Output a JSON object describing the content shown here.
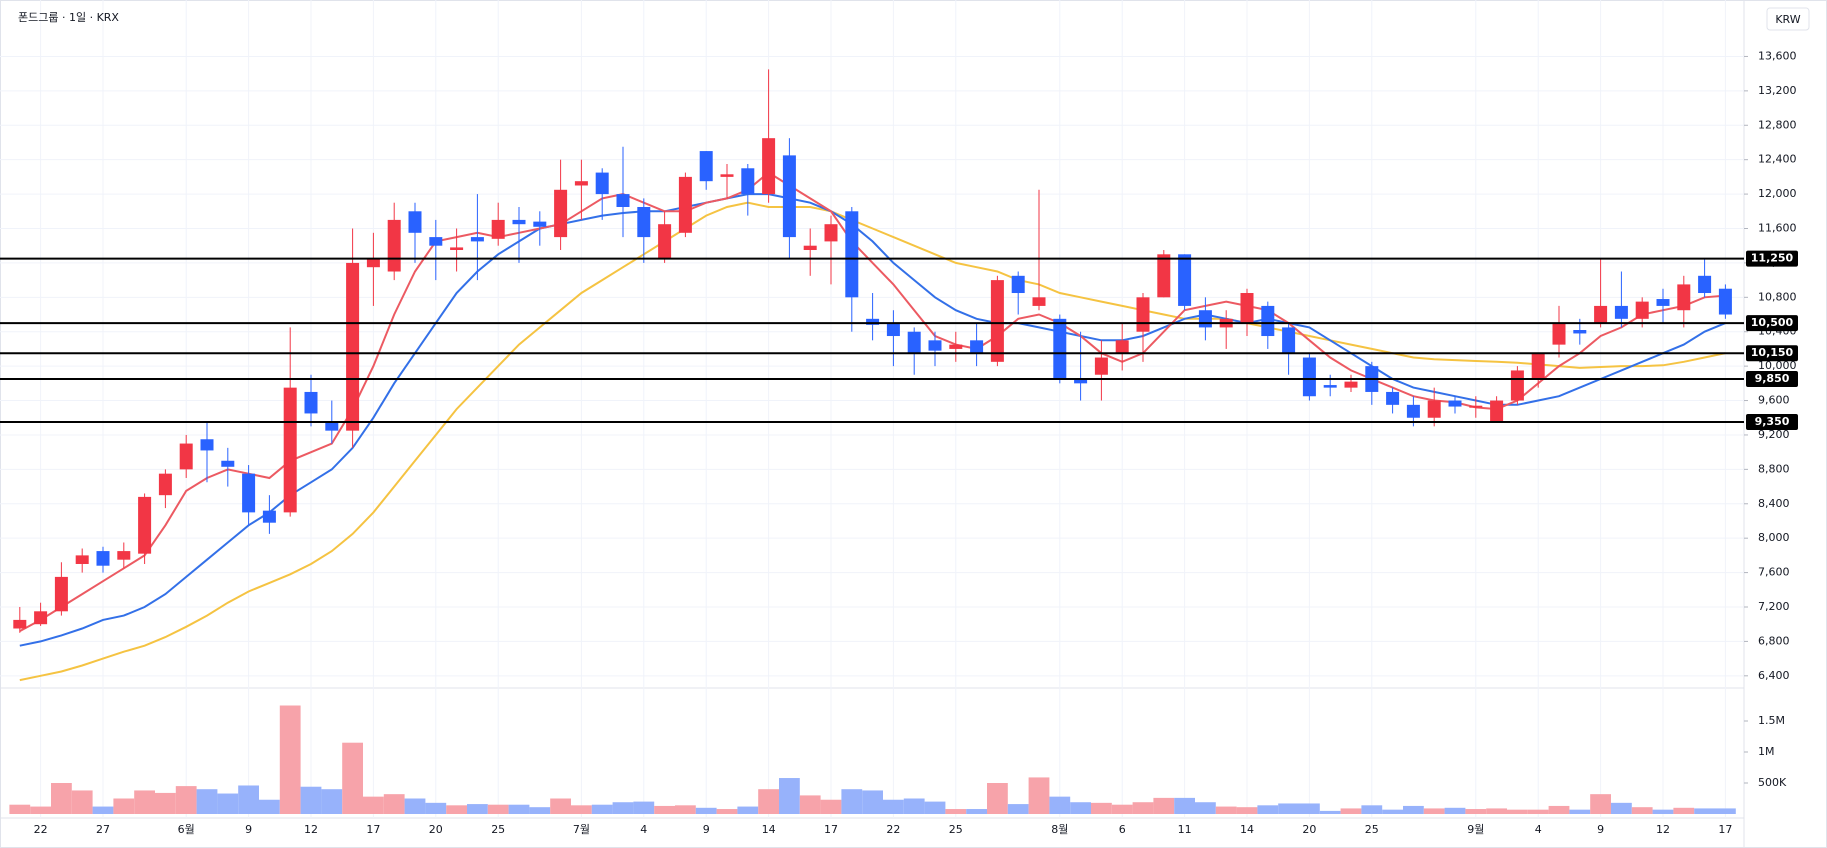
{
  "chart_data": {
    "type": "candlestick",
    "title": "폰드그룹 · 1일 · KRX",
    "currency": "KRW",
    "categories": [
      null,
      "22",
      null,
      null,
      "27",
      null,
      null,
      null,
      "6월",
      null,
      null,
      "9",
      null,
      null,
      "12",
      null,
      null,
      "17",
      null,
      null,
      "20",
      null,
      null,
      "25",
      null,
      null,
      null,
      "7월",
      null,
      null,
      "4",
      null,
      null,
      "9",
      null,
      null,
      "14",
      null,
      null,
      "17",
      null,
      null,
      "22",
      null,
      null,
      "25",
      null,
      null,
      null,
      null,
      "8월",
      null,
      null,
      "6",
      null,
      null,
      "11",
      null,
      null,
      "14",
      null,
      null,
      "20",
      null,
      null,
      "25",
      null,
      null,
      null,
      null,
      "9월",
      null,
      null,
      "4",
      null,
      null,
      "9",
      null,
      null,
      "12",
      null,
      null,
      "17"
    ],
    "open": [
      6950,
      7000,
      7150,
      7700,
      7850,
      7750,
      7820,
      8500,
      8800,
      9150,
      8900,
      8750,
      8320,
      8300,
      9700,
      9350,
      9250,
      11150,
      11100,
      11800,
      11500,
      11350,
      11500,
      11480,
      11700,
      11680,
      11500,
      12100,
      12250,
      12000,
      11850,
      11250,
      11550,
      12500,
      12200,
      12300,
      12000,
      12450,
      11350,
      11450,
      11800,
      10550,
      10500,
      10400,
      10300,
      10200,
      10300,
      10050,
      11050,
      10700,
      10550,
      9850,
      9900,
      10150,
      10400,
      10800,
      11300,
      10650,
      10450,
      10500,
      10700,
      10450,
      10100,
      9780,
      9750,
      10000,
      9700,
      9550,
      9400,
      9600,
      9520,
      9350,
      9600,
      9850,
      10250,
      10420,
      10500,
      10700,
      10550,
      10780,
      10650,
      11050,
      10900
    ],
    "high": [
      7200,
      7250,
      7720,
      7880,
      7900,
      7950,
      8520,
      8800,
      9200,
      9350,
      9050,
      8850,
      8500,
      10450,
      9900,
      9600,
      11600,
      11550,
      11900,
      11900,
      11700,
      11600,
      12000,
      11900,
      11850,
      11800,
      12400,
      12400,
      12300,
      12550,
      11950,
      11800,
      12250,
      12500,
      12350,
      12350,
      13450,
      12650,
      11600,
      11750,
      11850,
      10850,
      10650,
      10450,
      10400,
      10400,
      10500,
      11050,
      11100,
      12050,
      10600,
      10400,
      10300,
      10500,
      10850,
      11350,
      11300,
      10800,
      10650,
      10900,
      10750,
      10500,
      10150,
      9900,
      9900,
      10050,
      9750,
      9650,
      9750,
      9650,
      9650,
      9650,
      10000,
      10150,
      10700,
      10550,
      11250,
      11100,
      10800,
      10900,
      11050,
      11250,
      10950
    ],
    "low": [
      6900,
      6980,
      7100,
      7600,
      7600,
      7650,
      7700,
      8350,
      8700,
      8650,
      8600,
      8150,
      8050,
      8250,
      9300,
      9100,
      9050,
      10700,
      11000,
      11200,
      11000,
      11100,
      11000,
      11400,
      11200,
      11400,
      11350,
      11700,
      11700,
      11500,
      11200,
      11200,
      11500,
      12050,
      11950,
      11750,
      11900,
      11250,
      11050,
      10950,
      10400,
      10300,
      10000,
      9900,
      10000,
      10050,
      10000,
      10000,
      10600,
      10650,
      9800,
      9600,
      9600,
      9950,
      10050,
      10800,
      10650,
      10300,
      10200,
      10350,
      10200,
      9900,
      9600,
      9650,
      9700,
      9550,
      9450,
      9300,
      9300,
      9450,
      9400,
      9350,
      9550,
      9750,
      10100,
      10250,
      10450,
      10450,
      10450,
      10500,
      10450,
      10800,
      10550
    ],
    "close": [
      7050,
      7150,
      7550,
      7800,
      7680,
      7850,
      8480,
      8750,
      9100,
      9020,
      8830,
      8300,
      8180,
      9750,
      9450,
      9250,
      11200,
      11250,
      11700,
      11550,
      11400,
      11380,
      11450,
      11700,
      11650,
      11620,
      12050,
      12150,
      12000,
      11850,
      11500,
      11650,
      12200,
      12150,
      12230,
      12000,
      12650,
      11500,
      11400,
      11650,
      10800,
      10480,
      10350,
      10150,
      10180,
      10250,
      10150,
      11000,
      10850,
      10800,
      9850,
      9800,
      10100,
      10300,
      10800,
      11300,
      10700,
      10450,
      10550,
      10850,
      10350,
      10150,
      9650,
      9750,
      9820,
      9700,
      9550,
      9400,
      9600,
      9530,
      9540,
      9600,
      9950,
      10150,
      10500,
      10380,
      10700,
      10550,
      10750,
      10700,
      10950,
      10850,
      10600
    ],
    "volume": [
      150000,
      120000,
      500000,
      380000,
      120000,
      250000,
      380000,
      340000,
      450000,
      400000,
      330000,
      460000,
      230000,
      1750000,
      440000,
      400000,
      1150000,
      280000,
      320000,
      250000,
      180000,
      140000,
      160000,
      150000,
      150000,
      110000,
      250000,
      140000,
      150000,
      190000,
      200000,
      130000,
      140000,
      100000,
      80000,
      120000,
      400000,
      580000,
      300000,
      230000,
      400000,
      380000,
      230000,
      250000,
      200000,
      80000,
      80000,
      500000,
      160000,
      590000,
      280000,
      190000,
      180000,
      150000,
      190000,
      260000,
      260000,
      190000,
      120000,
      110000,
      140000,
      170000,
      170000,
      50000,
      90000,
      140000,
      70000,
      130000,
      90000,
      100000,
      80000,
      90000,
      70000,
      70000,
      130000,
      70000,
      320000,
      180000,
      110000,
      70000,
      100000,
      90000,
      90000
    ],
    "up_color": "#f23645",
    "down_color": "#2962ff",
    "up_volume_color": "#f7a3aa",
    "down_volume_color": "#97b2fb",
    "moving_averages": [
      {
        "color": "#f5c342",
        "values": [
          6350,
          6400,
          6450,
          6520,
          6600,
          6680,
          6750,
          6850,
          6970,
          7100,
          7250,
          7380,
          7480,
          7580,
          7700,
          7850,
          8050,
          8300,
          8600,
          8900,
          9200,
          9500,
          9750,
          10000,
          10250,
          10450,
          10650,
          10850,
          11000,
          11150,
          11300,
          11450,
          11600,
          11750,
          11850,
          11900,
          11850,
          11850,
          11850,
          11800,
          11700,
          11600,
          11500,
          11400,
          11300,
          11200,
          11150,
          11100,
          11000,
          10950,
          10850,
          10800,
          10750,
          10700,
          10650,
          10600,
          10550,
          10550,
          10550,
          10500,
          10450,
          10400,
          10350,
          10300,
          10250,
          10200,
          10150,
          10100,
          10080,
          10070,
          10060,
          10050,
          10040,
          10020,
          10000,
          9980,
          9990,
          10000,
          10000,
          10010,
          10050,
          10100,
          10150
        ]
      },
      {
        "color": "#3370e8",
        "values": [
          6750,
          6800,
          6870,
          6950,
          7050,
          7100,
          7200,
          7350,
          7550,
          7750,
          7950,
          8150,
          8300,
          8500,
          8650,
          8800,
          9050,
          9400,
          9800,
          10150,
          10500,
          10850,
          11100,
          11300,
          11450,
          11600,
          11650,
          11700,
          11750,
          11780,
          11800,
          11800,
          11850,
          11900,
          11950,
          12000,
          12000,
          11950,
          11900,
          11800,
          11650,
          11450,
          11200,
          11000,
          10800,
          10650,
          10550,
          10500,
          10500,
          10450,
          10400,
          10350,
          10300,
          10300,
          10350,
          10450,
          10550,
          10600,
          10550,
          10500,
          10550,
          10500,
          10450,
          10300,
          10150,
          10000,
          9850,
          9750,
          9700,
          9650,
          9600,
          9550,
          9550,
          9600,
          9650,
          9750,
          9850,
          9950,
          10050,
          10150,
          10250,
          10400,
          10500
        ]
      },
      {
        "color": "#ec5a62",
        "values": [
          6920,
          7050,
          7200,
          7350,
          7500,
          7650,
          7800,
          8150,
          8550,
          8700,
          8800,
          8750,
          8700,
          8900,
          9000,
          9100,
          9500,
          10000,
          10600,
          11100,
          11450,
          11500,
          11550,
          11500,
          11550,
          11600,
          11650,
          11800,
          11950,
          12000,
          11900,
          11800,
          11800,
          11900,
          11950,
          12050,
          12250,
          12100,
          11950,
          11800,
          11450,
          11200,
          10950,
          10650,
          10350,
          10250,
          10200,
          10350,
          10550,
          10600,
          10500,
          10350,
          10150,
          10050,
          10150,
          10400,
          10650,
          10700,
          10750,
          10700,
          10650,
          10500,
          10300,
          10100,
          9950,
          9850,
          9750,
          9650,
          9600,
          9580,
          9520,
          9500,
          9600,
          9800,
          10000,
          10150,
          10350,
          10450,
          10600,
          10650,
          10700,
          10800,
          10820
        ]
      }
    ],
    "levels": [
      {
        "value": 11250,
        "label": "11,250"
      },
      {
        "value": 10500,
        "label": "10,500"
      },
      {
        "value": 10150,
        "label": "10,150"
      },
      {
        "value": 9850,
        "label": "9,850"
      },
      {
        "value": 9350,
        "label": "9,350"
      }
    ],
    "level_color": "#000000",
    "ylim": [
      6270,
      14140
    ],
    "yticks": [
      {
        "value": 6400,
        "label": "6,400"
      },
      {
        "value": 6800,
        "label": "6,800"
      },
      {
        "value": 7200,
        "label": "7,200"
      },
      {
        "value": 7600,
        "label": "7,600"
      },
      {
        "value": 8000,
        "label": "8,000"
      },
      {
        "value": 8400,
        "label": "8,400"
      },
      {
        "value": 8800,
        "label": "8,800"
      },
      {
        "value": 9200,
        "label": "9,200"
      },
      {
        "value": 9600,
        "label": "9,600"
      },
      {
        "value": 10000,
        "label": "10,000"
      },
      {
        "value": 10400,
        "label": "10,400"
      },
      {
        "value": 10800,
        "label": "10,800"
      },
      {
        "value": 11200,
        "label": "11,200"
      },
      {
        "value": 11600,
        "label": "11,600"
      },
      {
        "value": 12000,
        "label": "12,000"
      },
      {
        "value": 12400,
        "label": "12,400"
      },
      {
        "value": 12800,
        "label": "12,800"
      },
      {
        "value": 13200,
        "label": "13,200"
      },
      {
        "value": 13600,
        "label": "13,600"
      }
    ],
    "volume_ylim": [
      0,
      2000000
    ],
    "volume_yticks": [
      {
        "value": 500000,
        "label": "500K"
      },
      {
        "value": 1000000,
        "label": "1M"
      },
      {
        "value": 1500000,
        "label": "1.5M"
      }
    ],
    "grid": true
  }
}
